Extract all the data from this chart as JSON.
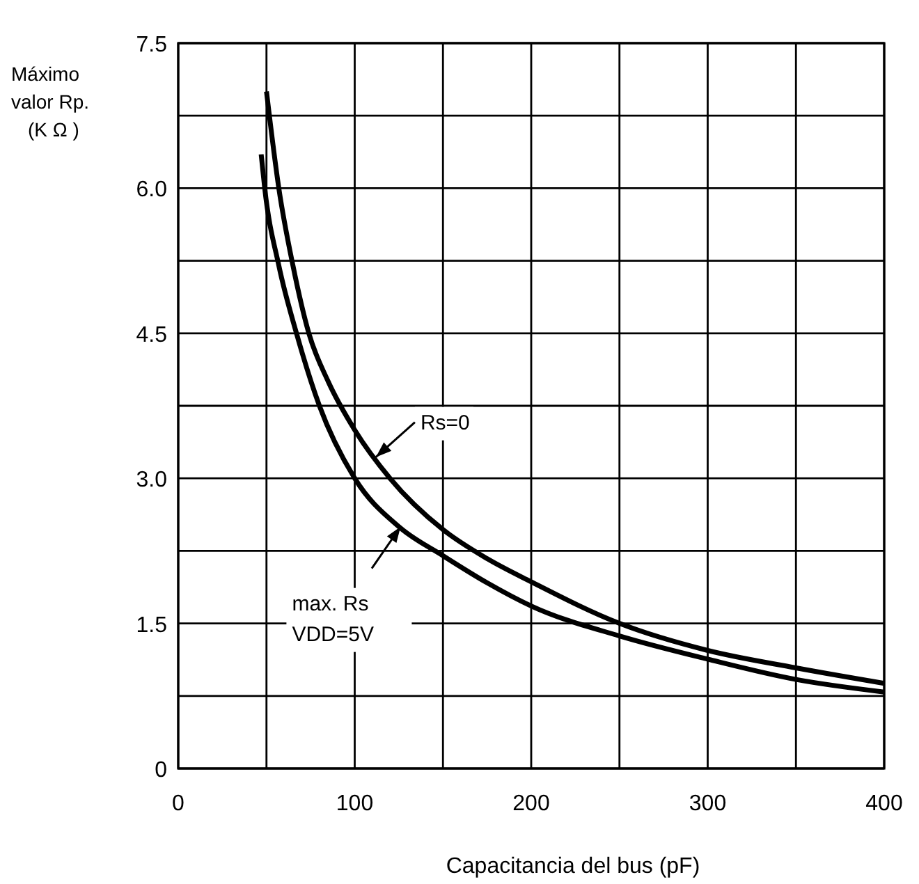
{
  "chart_data": {
    "type": "line",
    "xlabel": "Capacitancia del bus (pF)",
    "ylabel": "Máximo\nvalor Rp.\n(K Ω )",
    "xlim": [
      0,
      400
    ],
    "ylim": [
      0,
      7.5
    ],
    "xticks": [
      0,
      {
        "value": 50,
        "label": null
      },
      100,
      {
        "value": 150,
        "label": null
      },
      200,
      {
        "value": 250,
        "label": null
      },
      300,
      {
        "value": 350,
        "label": null
      },
      400
    ],
    "yticks": [
      0,
      {
        "value": 0.75,
        "label": null
      },
      1.5,
      {
        "value": 2.25,
        "label": null
      },
      {
        "value": 3,
        "label": "3.0"
      },
      {
        "value": 3.75,
        "label": null
      },
      4.5,
      {
        "value": 5.25,
        "label": null
      },
      {
        "value": 6,
        "label": "6.0"
      },
      {
        "value": 6.75,
        "label": null
      },
      7.5
    ],
    "grid": true,
    "marker": "none",
    "line_style": "solid",
    "series": [
      {
        "color": "#000000",
        "x": [
          50,
          57,
          65,
          74,
          85,
          100,
          120,
          150,
          175,
          200,
          250,
          300,
          350,
          400
        ],
        "values": [
          7.0,
          6.0,
          5.2,
          4.5,
          4.0,
          3.5,
          3.0,
          2.47,
          2.17,
          1.93,
          1.5,
          1.22,
          1.04,
          0.88
        ]
      },
      {
        "color": "#000000",
        "x": [
          47,
          49,
          57,
          67,
          80,
          100,
          125,
          150,
          175,
          200,
          250,
          300,
          350,
          400
        ],
        "values": [
          6.35,
          6.0,
          5.2,
          4.5,
          3.75,
          3.0,
          2.5,
          2.2,
          1.92,
          1.68,
          1.37,
          1.13,
          0.92,
          0.79
        ]
      }
    ],
    "annotations": [
      {
        "text": "Rs=0",
        "x": 112,
        "y": 3.22
      },
      {
        "text": "max. Rs\nVDD=5V",
        "x": 126,
        "y": 2.5
      }
    ]
  }
}
